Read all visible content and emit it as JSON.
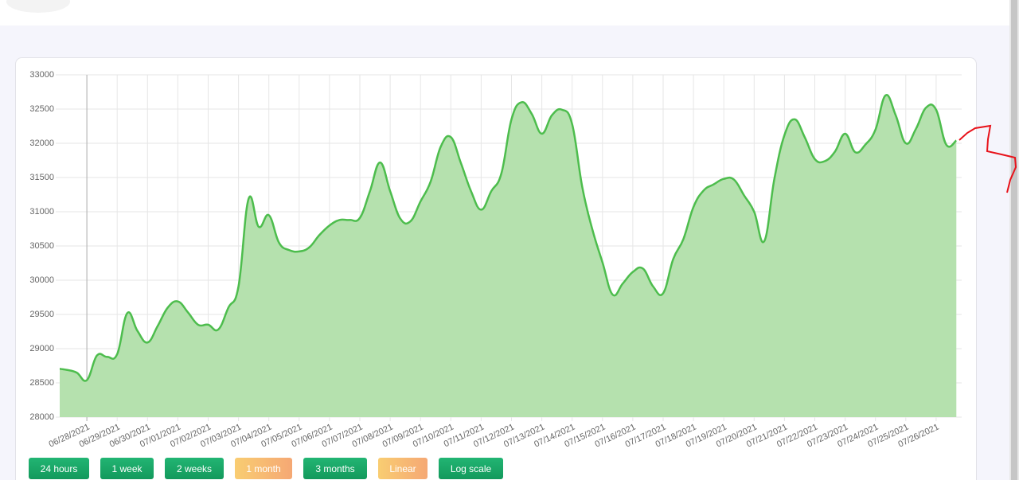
{
  "chart_data": {
    "type": "area",
    "categories": [
      null,
      null,
      null,
      "06/28/2021",
      null,
      null,
      "06/29/2021",
      null,
      null,
      "06/30/2021",
      null,
      null,
      "07/01/2021",
      null,
      null,
      "07/02/2021",
      null,
      null,
      "07/03/2021",
      null,
      null,
      "07/04/2021",
      null,
      null,
      "07/05/2021",
      null,
      null,
      "07/06/2021",
      null,
      null,
      "07/07/2021",
      null,
      null,
      "07/08/2021",
      null,
      null,
      "07/09/2021",
      null,
      null,
      "07/10/2021",
      null,
      null,
      "07/11/2021",
      null,
      null,
      "07/12/2021",
      null,
      null,
      "07/13/2021",
      null,
      null,
      "07/14/2021",
      null,
      null,
      "07/15/2021",
      null,
      null,
      "07/16/2021",
      null,
      null,
      "07/17/2021",
      null,
      null,
      "07/18/2021",
      null,
      null,
      "07/19/2021",
      null,
      null,
      "07/20/2021",
      null,
      null,
      "07/21/2021",
      null,
      null,
      "07/22/2021",
      null,
      null,
      "07/23/2021",
      null,
      null,
      "07/24/2021",
      null,
      null,
      "07/25/2021",
      null,
      null,
      "07/26/2021",
      null,
      null
    ],
    "values": [
      28710,
      28690,
      28650,
      28540,
      28900,
      28880,
      28920,
      29520,
      29260,
      29090,
      29330,
      29600,
      29690,
      29530,
      29350,
      29350,
      29280,
      29600,
      29910,
      31190,
      30780,
      30950,
      30550,
      30440,
      30420,
      30480,
      30660,
      30800,
      30880,
      30880,
      30910,
      31300,
      31720,
      31300,
      30900,
      30860,
      31150,
      31440,
      31950,
      32090,
      31710,
      31300,
      31030,
      31300,
      31560,
      32350,
      32600,
      32430,
      32140,
      32410,
      32490,
      32280,
      31360,
      30740,
      30260,
      29790,
      29950,
      30120,
      30170,
      29910,
      29810,
      30310,
      30600,
      31070,
      31310,
      31400,
      31480,
      31470,
      31240,
      31000,
      30570,
      31480,
      32120,
      32350,
      32090,
      31770,
      31740,
      31880,
      32140,
      31870,
      31980,
      32200,
      32700,
      32410,
      32000,
      32210,
      32520,
      32490,
      31980,
      32040
    ],
    "color": "#4dbd4d",
    "fill": "#b5e1ae",
    "ylim": [
      28000,
      33000
    ],
    "yticks": [
      28000,
      28500,
      29000,
      29500,
      30000,
      30500,
      31000,
      31500,
      32000,
      32500,
      33000
    ],
    "grid": true
  },
  "buttons": [
    "24 hours",
    "1 week",
    "2 weeks",
    "1 month",
    "3 months",
    "Linear",
    "Log scale"
  ]
}
